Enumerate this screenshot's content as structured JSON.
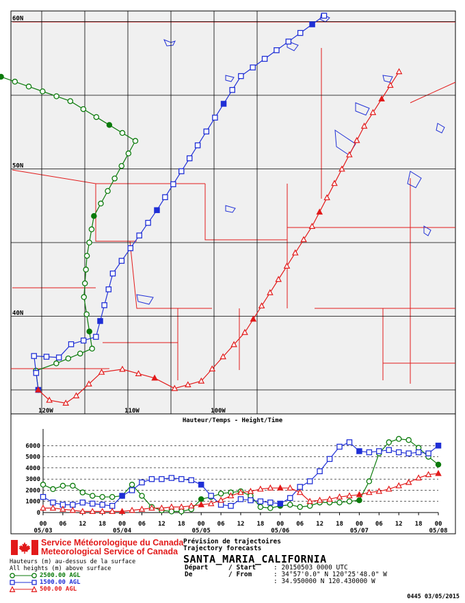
{
  "map": {
    "lat_labels": [
      {
        "text": "60N",
        "lat": 60
      },
      {
        "text": "50N",
        "lat": 50
      },
      {
        "text": "40N",
        "lat": 40
      }
    ],
    "lon_labels": [
      {
        "text": "120W",
        "lon": -120
      },
      {
        "text": "110W",
        "lon": -110
      },
      {
        "text": "100W",
        "lon": -100
      }
    ]
  },
  "chart_data": [
    {
      "type": "line",
      "title": "",
      "series": [
        {
          "name": "2500.00 AGL",
          "color": "#0a7a0a",
          "marker": "circle",
          "points": [
            [
              -123.5,
              58.9
            ],
            [
              -113.6,
              54.6
            ],
            [
              -109.5,
              51.9
            ],
            [
              -112.6,
              46.8
            ],
            [
              -113.4,
              44.1
            ],
            [
              -114.0,
              41.3
            ],
            [
              -113.7,
              37.8
            ],
            [
              -117.7,
              36.8
            ],
            [
              -120.1,
              36.3
            ],
            [
              -120.4,
              35.0
            ]
          ]
        },
        {
          "name": "1500.00 AGL",
          "color": "#1f2fd6",
          "marker": "square",
          "points": [
            [
              -120.4,
              35.0
            ],
            [
              -119.9,
              37.3
            ],
            [
              -117.3,
              37.2
            ],
            [
              -115.8,
              38.1
            ],
            [
              -113.2,
              38.6
            ],
            [
              -111.3,
              42.9
            ],
            [
              -107.8,
              47.2
            ],
            [
              -105.3,
              51.6
            ],
            [
              -103.2,
              56.3
            ],
            [
              -99.2,
              60.4
            ]
          ]
        },
        {
          "name": "500.00 AGL",
          "color": "#e21a1a",
          "marker": "triangle",
          "points": [
            [
              -120.4,
              35.0
            ],
            [
              -119.4,
              34.3
            ],
            [
              -117.5,
              34.1
            ],
            [
              -116.1,
              34.6
            ],
            [
              -112.9,
              36.2
            ],
            [
              -110.6,
              36.4
            ],
            [
              -107.0,
              35.8
            ],
            [
              -104.6,
              35.1
            ],
            [
              -101.7,
              35.6
            ],
            [
              -98.4,
              38.9
            ],
            [
              -95.6,
              46.1
            ],
            [
              -94.6,
              52.9
            ],
            [
              -93.8,
              56.6
            ]
          ]
        }
      ]
    },
    {
      "type": "line",
      "title": "Hauteur/Temps - Height/Time",
      "xlabel": "",
      "ylabel": "",
      "ylim": [
        0,
        7000
      ],
      "yticks": [
        0,
        1000,
        2000,
        3000,
        4000,
        5000,
        6000
      ],
      "x_hours_range": [
        0,
        120
      ],
      "major_ticks": [
        {
          "label": "00",
          "date": "05/03",
          "hour": 0
        },
        {
          "label": "06",
          "hour": 6
        },
        {
          "label": "12",
          "hour": 12
        },
        {
          "label": "18",
          "hour": 18
        },
        {
          "label": "00",
          "date": "05/04",
          "hour": 24
        },
        {
          "label": "06",
          "hour": 30
        },
        {
          "label": "12",
          "hour": 36
        },
        {
          "label": "18",
          "hour": 42
        },
        {
          "label": "00",
          "date": "05/05",
          "hour": 48
        },
        {
          "label": "06",
          "hour": 54
        },
        {
          "label": "12",
          "hour": 60
        },
        {
          "label": "18",
          "hour": 66
        },
        {
          "label": "00",
          "date": "05/06",
          "hour": 72
        },
        {
          "label": "06",
          "hour": 78
        },
        {
          "label": "12",
          "hour": 84
        },
        {
          "label": "18",
          "hour": 90
        },
        {
          "label": "00",
          "date": "05/07",
          "hour": 96
        },
        {
          "label": "06",
          "hour": 102
        },
        {
          "label": "12",
          "hour": 108
        },
        {
          "label": "18",
          "hour": 114
        },
        {
          "label": "00",
          "date": "05/08",
          "hour": 120
        }
      ],
      "series": [
        {
          "name": "2500.00 AGL",
          "color": "#0a7a0a",
          "marker": "circle",
          "values": [
            [
              0,
              2500
            ],
            [
              3,
              2100
            ],
            [
              6,
              2400
            ],
            [
              9,
              2400
            ],
            [
              12,
              1800
            ],
            [
              15,
              1500
            ],
            [
              18,
              1400
            ],
            [
              21,
              1400
            ],
            [
              24,
              1500
            ],
            [
              27,
              2500
            ],
            [
              30,
              1500
            ],
            [
              33,
              500
            ],
            [
              36,
              200
            ],
            [
              39,
              100
            ],
            [
              42,
              100
            ],
            [
              45,
              300
            ],
            [
              48,
              1200
            ],
            [
              51,
              1400
            ],
            [
              54,
              1700
            ],
            [
              57,
              1800
            ],
            [
              60,
              1900
            ],
            [
              63,
              1500
            ],
            [
              66,
              500
            ],
            [
              69,
              400
            ],
            [
              72,
              600
            ],
            [
              75,
              700
            ],
            [
              78,
              500
            ],
            [
              81,
              600
            ],
            [
              84,
              900
            ],
            [
              87,
              900
            ],
            [
              90,
              900
            ],
            [
              93,
              1000
            ],
            [
              96,
              1100
            ],
            [
              99,
              2800
            ],
            [
              102,
              5300
            ],
            [
              105,
              6300
            ],
            [
              108,
              6600
            ],
            [
              111,
              6500
            ],
            [
              114,
              5800
            ],
            [
              117,
              5000
            ],
            [
              120,
              4300
            ]
          ]
        },
        {
          "name": "1500.00 AGL",
          "color": "#1f2fd6",
          "marker": "square",
          "values": [
            [
              0,
              1400
            ],
            [
              3,
              900
            ],
            [
              6,
              700
            ],
            [
              9,
              700
            ],
            [
              12,
              900
            ],
            [
              15,
              800
            ],
            [
              18,
              700
            ],
            [
              21,
              600
            ],
            [
              24,
              1500
            ],
            [
              27,
              2000
            ],
            [
              30,
              2700
            ],
            [
              33,
              3000
            ],
            [
              36,
              3000
            ],
            [
              39,
              3100
            ],
            [
              42,
              3000
            ],
            [
              45,
              2900
            ],
            [
              48,
              2500
            ],
            [
              51,
              1500
            ],
            [
              54,
              700
            ],
            [
              57,
              600
            ],
            [
              60,
              1200
            ],
            [
              63,
              1100
            ],
            [
              66,
              1000
            ],
            [
              69,
              900
            ],
            [
              72,
              800
            ],
            [
              75,
              1300
            ],
            [
              78,
              2300
            ],
            [
              81,
              2800
            ],
            [
              84,
              3700
            ],
            [
              87,
              4800
            ],
            [
              90,
              5900
            ],
            [
              93,
              6300
            ],
            [
              96,
              5500
            ],
            [
              99,
              5400
            ],
            [
              102,
              5500
            ],
            [
              105,
              5600
            ],
            [
              108,
              5400
            ],
            [
              111,
              5300
            ],
            [
              114,
              5400
            ],
            [
              117,
              5300
            ],
            [
              120,
              6000
            ]
          ]
        },
        {
          "name": "500.00 AGL",
          "color": "#e21a1a",
          "marker": "triangle",
          "values": [
            [
              0,
              400
            ],
            [
              3,
              400
            ],
            [
              6,
              300
            ],
            [
              9,
              200
            ],
            [
              12,
              100
            ],
            [
              15,
              100
            ],
            [
              18,
              100
            ],
            [
              21,
              100
            ],
            [
              24,
              100
            ],
            [
              27,
              200
            ],
            [
              30,
              300
            ],
            [
              33,
              400
            ],
            [
              36,
              400
            ],
            [
              39,
              500
            ],
            [
              42,
              500
            ],
            [
              45,
              600
            ],
            [
              48,
              700
            ],
            [
              51,
              800
            ],
            [
              54,
              1100
            ],
            [
              57,
              1500
            ],
            [
              60,
              1800
            ],
            [
              63,
              1900
            ],
            [
              66,
              2100
            ],
            [
              69,
              2200
            ],
            [
              72,
              2200
            ],
            [
              75,
              2200
            ],
            [
              78,
              1800
            ],
            [
              81,
              1000
            ],
            [
              84,
              1100
            ],
            [
              87,
              1200
            ],
            [
              90,
              1400
            ],
            [
              93,
              1500
            ],
            [
              96,
              1600
            ],
            [
              99,
              1800
            ],
            [
              102,
              1900
            ],
            [
              105,
              2100
            ],
            [
              108,
              2400
            ],
            [
              111,
              2700
            ],
            [
              114,
              3100
            ],
            [
              117,
              3400
            ],
            [
              120,
              3500
            ]
          ]
        }
      ]
    }
  ],
  "logo": {
    "line1": "Service Météorologique du Canada",
    "line2": "Meteorological Service of Canada"
  },
  "legend": {
    "line1": "Hauteurs (m) au-dessus de la surface",
    "line2": "All heights (m) above surface",
    "entries": [
      {
        "label": "2500.00 AGL",
        "color": "#0a7a0a"
      },
      {
        "label": "1500.00 AGL",
        "color": "#1f2fd6"
      },
      {
        "label": "500.00 AGL",
        "color": "#e21a1a"
      }
    ]
  },
  "info": {
    "title_fr": "Prévision de trajectoires",
    "title_en": "Trajectory forecasts",
    "site": "SANTA_MARIA_CALIFORNIA",
    "start_label": "Départ",
    "start_sep": "/ Start",
    "start_value": ": 20150503 0000 UTC",
    "from_label": "De",
    "from_sep": "/ From",
    "from_value1": ": 34°57'0.0\" N 120°25'48.0\" W",
    "from_value2": ": 34.950000 N 120.430000 W"
  },
  "stamp": "0445 03/05/2015"
}
